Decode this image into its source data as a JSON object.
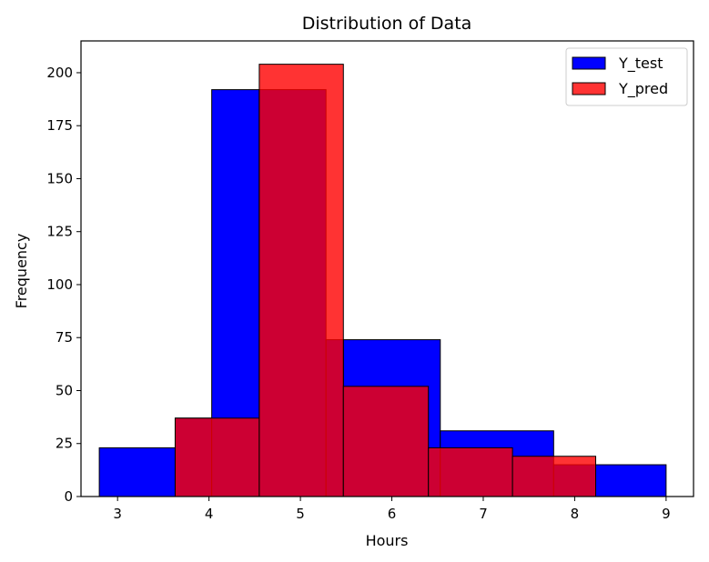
{
  "chart_data": {
    "type": "histogram",
    "title": "Distribution of Data",
    "xlabel": "Hours",
    "ylabel": "Frequency",
    "xlim": [
      2.6,
      9.3
    ],
    "ylim": [
      0,
      215
    ],
    "x_ticks": [
      3,
      4,
      5,
      6,
      7,
      8,
      9
    ],
    "y_ticks": [
      0,
      25,
      50,
      75,
      100,
      125,
      150,
      175,
      200
    ],
    "legend_position": "top-right",
    "series": [
      {
        "name": "Y_test",
        "color": "#0000ff",
        "opacity": 1.0,
        "bins": [
          {
            "x0": 2.8,
            "x1": 3.63,
            "value": 23
          },
          {
            "x0": 3.63,
            "x1": 4.03,
            "value": 37
          },
          {
            "x0": 4.03,
            "x1": 4.55,
            "value": 192
          },
          {
            "x0": 4.55,
            "x1": 5.28,
            "value": 192
          },
          {
            "x0": 5.28,
            "x1": 5.47,
            "value": 74
          },
          {
            "x0": 5.47,
            "x1": 6.53,
            "value": 74
          },
          {
            "x0": 6.53,
            "x1": 7.77,
            "value": 31
          },
          {
            "x0": 7.77,
            "x1": 9.0,
            "value": 15
          }
        ]
      },
      {
        "name": "Y_pred",
        "color": "#ff0000",
        "opacity": 0.8,
        "bins": [
          {
            "x0": 3.63,
            "x1": 4.55,
            "value": 37
          },
          {
            "x0": 4.55,
            "x1": 5.47,
            "value": 204
          },
          {
            "x0": 5.47,
            "x1": 6.4,
            "value": 52
          },
          {
            "x0": 6.4,
            "x1": 7.32,
            "value": 23
          },
          {
            "x0": 7.32,
            "x1": 8.23,
            "value": 19
          }
        ]
      }
    ]
  }
}
